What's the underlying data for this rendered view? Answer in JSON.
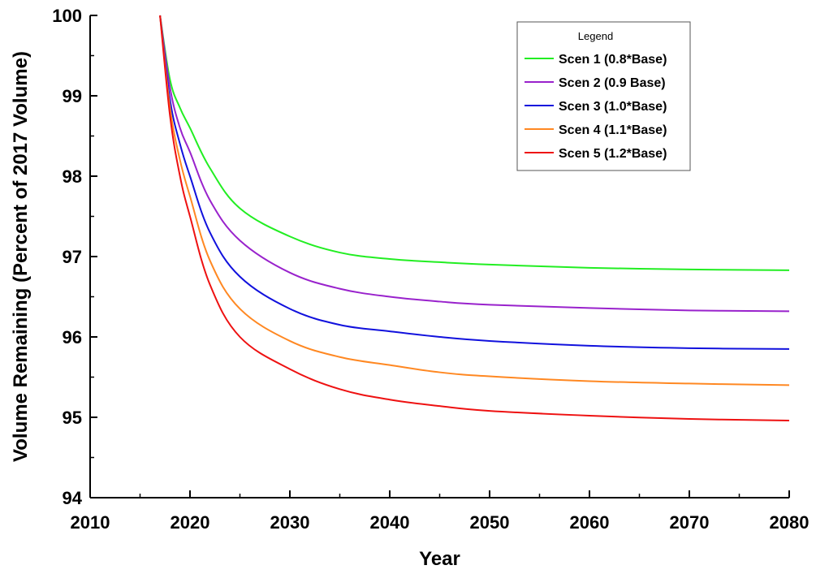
{
  "chart_data": {
    "type": "line",
    "xlabel": "Year",
    "ylabel": "Volume Remaining (Percent of 2017 Volume)",
    "xlim": [
      2010,
      2080
    ],
    "ylim": [
      94,
      100
    ],
    "x_ticks": [
      2010,
      2020,
      2030,
      2040,
      2050,
      2060,
      2070,
      2080
    ],
    "y_ticks": [
      94,
      95,
      96,
      97,
      98,
      99,
      100
    ],
    "grid": false,
    "legend": {
      "title": "Legend",
      "position": "top-right"
    },
    "x": [
      2017,
      2018,
      2019,
      2020,
      2022,
      2025,
      2030,
      2035,
      2040,
      2045,
      2050,
      2060,
      2070,
      2080
    ],
    "series": [
      {
        "name": "Scen 1 (0.8*Base)",
        "color": "#22ee22",
        "values": [
          100.0,
          99.2,
          98.85,
          98.6,
          98.1,
          97.6,
          97.25,
          97.05,
          96.97,
          96.93,
          96.9,
          96.86,
          96.84,
          96.83
        ]
      },
      {
        "name": "Scen 2 (0.9 Base)",
        "color": "#9922cc",
        "values": [
          100.0,
          99.1,
          98.6,
          98.3,
          97.7,
          97.2,
          96.8,
          96.6,
          96.5,
          96.44,
          96.4,
          96.36,
          96.33,
          96.32
        ]
      },
      {
        "name": "Scen 3 (1.0*Base)",
        "color": "#1111dd",
        "values": [
          100.0,
          98.95,
          98.4,
          98.0,
          97.3,
          96.75,
          96.35,
          96.15,
          96.07,
          96.0,
          95.95,
          95.89,
          95.86,
          95.85
        ]
      },
      {
        "name": "Scen 4 (1.1*Base)",
        "color": "#ff8822",
        "values": [
          100.0,
          98.85,
          98.2,
          97.75,
          96.95,
          96.35,
          95.95,
          95.75,
          95.65,
          95.56,
          95.51,
          95.45,
          95.42,
          95.4
        ]
      },
      {
        "name": "Scen 5 (1.2*Base)",
        "color": "#ee1111",
        "values": [
          100.0,
          98.75,
          98.0,
          97.5,
          96.65,
          96.0,
          95.6,
          95.35,
          95.22,
          95.14,
          95.08,
          95.02,
          94.98,
          94.96
        ]
      }
    ]
  }
}
